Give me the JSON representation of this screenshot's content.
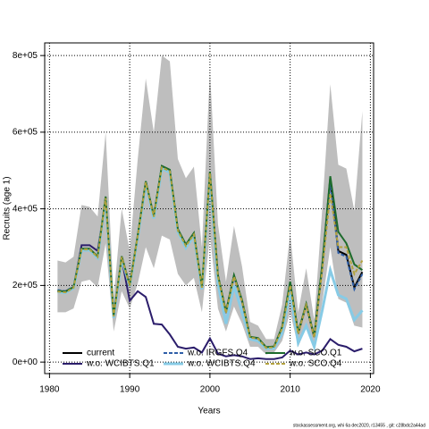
{
  "chart_data": {
    "type": "line",
    "xlabel": "Years",
    "ylabel": "Recruits (age 1)",
    "footnote": "stockassessment.org, whi 6a dec2020, r13455 , git: c28bdc2a44ad",
    "x": [
      1981,
      1982,
      1983,
      1984,
      1985,
      1986,
      1987,
      1988,
      1989,
      1990,
      1991,
      1992,
      1993,
      1994,
      1995,
      1996,
      1997,
      1998,
      1999,
      2000,
      2001,
      2002,
      2003,
      2004,
      2005,
      2006,
      2007,
      2008,
      2009,
      2010,
      2011,
      2012,
      2013,
      2014,
      2015,
      2016,
      2017,
      2018,
      2019
    ],
    "band": {
      "color": "#bebebe",
      "upper": [
        265000,
        260000,
        275000,
        410000,
        405000,
        380000,
        600000,
        170000,
        400000,
        290000,
        530000,
        740000,
        600000,
        800000,
        785000,
        530000,
        480000,
        510000,
        300000,
        760000,
        360000,
        210000,
        355000,
        250000,
        105000,
        95000,
        60000,
        60000,
        150000,
        335000,
        130000,
        245000,
        110000,
        400000,
        725000,
        515000,
        505000,
        395000,
        655000
      ],
      "lower": [
        130000,
        130000,
        140000,
        210000,
        215000,
        195000,
        310000,
        80000,
        185000,
        140000,
        205000,
        300000,
        245000,
        330000,
        320000,
        230000,
        200000,
        220000,
        130000,
        330000,
        140000,
        80000,
        145000,
        100000,
        40000,
        40000,
        20000,
        25000,
        55000,
        130000,
        40000,
        90000,
        35000,
        155000,
        300000,
        165000,
        155000,
        95000,
        90000
      ]
    },
    "series": [
      {
        "name": "current",
        "color": "#000000",
        "width": 2,
        "dashed": false,
        "values": [
          185000,
          183000,
          195000,
          295000,
          295000,
          275000,
          430000,
          120000,
          275000,
          200000,
          330000,
          470000,
          380000,
          510000,
          500000,
          345000,
          305000,
          335000,
          195000,
          495000,
          225000,
          130000,
          225000,
          160000,
          65000,
          62000,
          38000,
          40000,
          90000,
          205000,
          75000,
          150000,
          65000,
          250000,
          480000,
          290000,
          280000,
          195000,
          235000
        ]
      },
      {
        "name": "w.o. WCIBTS.Q1",
        "color": "#2b1d6b",
        "width": 2,
        "dashed": false,
        "values": [
          185000,
          185000,
          195000,
          305000,
          305000,
          290000,
          420000,
          120000,
          270000,
          160000,
          185000,
          170000,
          100000,
          98000,
          72000,
          40000,
          35000,
          38000,
          25000,
          62000,
          22000,
          15000,
          18000,
          15000,
          8000,
          10000,
          8000,
          8000,
          12000,
          30000,
          20000,
          25000,
          20000,
          30000,
          60000,
          45000,
          40000,
          28000,
          35000
        ]
      },
      {
        "name": "w.o. IRGFS.Q4",
        "color": "#2f5fa8",
        "width": 2,
        "dashed": true,
        "values": [
          188000,
          185000,
          197000,
          293000,
          293000,
          273000,
          428000,
          118000,
          273000,
          203000,
          328000,
          468000,
          378000,
          508000,
          498000,
          343000,
          303000,
          333000,
          193000,
          493000,
          223000,
          128000,
          223000,
          158000,
          63000,
          60000,
          36000,
          38000,
          88000,
          203000,
          73000,
          148000,
          63000,
          248000,
          470000,
          285000,
          275000,
          190000,
          230000
        ]
      },
      {
        "name": "w.o. WCIBTS.Q4",
        "color": "#87cbe6",
        "width": 3,
        "dashed": false,
        "values": [
          183000,
          181000,
          193000,
          292000,
          292000,
          272000,
          425000,
          115000,
          270000,
          198000,
          325000,
          465000,
          375000,
          505000,
          495000,
          340000,
          298000,
          330000,
          190000,
          488000,
          205000,
          100000,
          200000,
          130000,
          60000,
          55000,
          35000,
          36000,
          75000,
          185000,
          50000,
          95000,
          40000,
          135000,
          240000,
          175000,
          165000,
          110000,
          135000
        ]
      },
      {
        "name": "w.o. SCO.Q1",
        "color": "#1d6b2c",
        "width": 2,
        "dashed": false,
        "values": [
          186000,
          184000,
          196000,
          296000,
          296000,
          276000,
          432000,
          121000,
          276000,
          201000,
          331000,
          472000,
          382000,
          512000,
          502000,
          347000,
          307000,
          337000,
          196000,
          497000,
          227000,
          132000,
          227000,
          162000,
          66000,
          63000,
          39000,
          41000,
          92000,
          210000,
          77000,
          152000,
          67000,
          255000,
          485000,
          340000,
          310000,
          255000,
          240000
        ]
      },
      {
        "name": "w.o. SCO.Q4",
        "color": "#b3a23e",
        "width": 2,
        "dashed": true,
        "values": [
          184000,
          182000,
          194000,
          294000,
          294000,
          274000,
          428000,
          119000,
          274000,
          199000,
          329000,
          469000,
          379000,
          508000,
          498000,
          343000,
          303000,
          333000,
          194000,
          493000,
          223000,
          128000,
          223000,
          158000,
          64000,
          61000,
          37000,
          39000,
          88000,
          200000,
          74000,
          148000,
          64000,
          240000,
          440000,
          300000,
          300000,
          230000,
          265000
        ]
      }
    ],
    "xlim": [
      1979.4,
      2020.4
    ],
    "ylim": [
      -30000,
      833000
    ],
    "xticks": [
      1980,
      1990,
      2000,
      2010,
      2020
    ],
    "yticks": [
      {
        "value": 0,
        "label": "0e+00"
      },
      {
        "value": 200000,
        "label": "2e+05"
      },
      {
        "value": 400000,
        "label": "4e+05"
      },
      {
        "value": 600000,
        "label": "6e+05"
      },
      {
        "value": 800000,
        "label": "8e+05"
      }
    ],
    "grid": true,
    "legend": "lower left"
  }
}
